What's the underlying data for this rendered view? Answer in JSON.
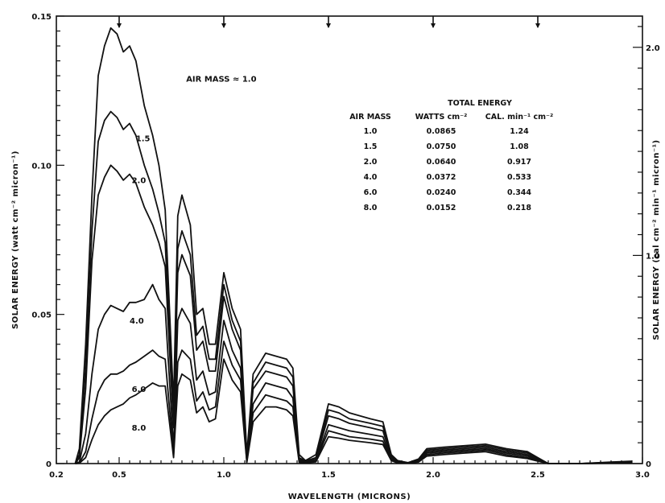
{
  "chart_data": {
    "type": "line",
    "title": "",
    "xlabel": "WAVELENGTH (MICRONS)",
    "ylabel": "SOLAR ENERGY (watt cm⁻² micron⁻¹)",
    "ylabel_right": "SOLAR ENERGY (cal cm⁻² min⁻¹ micron⁻¹)",
    "xlim": [
      0.2,
      3.0
    ],
    "ylim": [
      0,
      0.15
    ],
    "ylim_right": [
      0,
      2.15
    ],
    "x_ticks": [
      "0.2",
      "0.5",
      "1.0",
      "1.5",
      "2.0",
      "2.5",
      "3.0"
    ],
    "y_ticks": [
      "0",
      "0.05",
      "0.10",
      "0.15"
    ],
    "y_ticks_right": [
      "0",
      "1.0",
      "2.0"
    ],
    "grid": false,
    "series_labels": [
      "AIR MASS ≈ 1.0",
      "1.5",
      "2.0",
      "4.0",
      "6.0",
      "8.0"
    ],
    "x": [
      0.29,
      0.31,
      0.34,
      0.37,
      0.4,
      0.43,
      0.46,
      0.49,
      0.52,
      0.55,
      0.58,
      0.62,
      0.66,
      0.69,
      0.72,
      0.76,
      0.78,
      0.8,
      0.84,
      0.87,
      0.9,
      0.93,
      0.96,
      1.0,
      1.04,
      1.08,
      1.11,
      1.14,
      1.2,
      1.25,
      1.3,
      1.33,
      1.36,
      1.39,
      1.44,
      1.5,
      1.55,
      1.6,
      1.7,
      1.76,
      1.8,
      1.83,
      1.88,
      1.93,
      1.97,
      2.05,
      2.15,
      2.25,
      2.35,
      2.45,
      2.5,
      2.55,
      2.7,
      2.85,
      2.95
    ],
    "series": [
      {
        "name": "AIR MASS ≈ 1.0",
        "values": [
          0.0,
          0.005,
          0.04,
          0.09,
          0.13,
          0.14,
          0.146,
          0.144,
          0.138,
          0.14,
          0.135,
          0.12,
          0.11,
          0.1,
          0.085,
          0.02,
          0.083,
          0.09,
          0.08,
          0.05,
          0.052,
          0.04,
          0.04,
          0.064,
          0.052,
          0.045,
          0.003,
          0.03,
          0.037,
          0.036,
          0.035,
          0.032,
          0.003,
          0.001,
          0.003,
          0.02,
          0.019,
          0.017,
          0.015,
          0.014,
          0.003,
          0.001,
          0.0003,
          0.0015,
          0.005,
          0.0055,
          0.006,
          0.0065,
          0.005,
          0.004,
          0.002,
          0.0,
          0.0,
          0.0005,
          0.0008
        ]
      },
      {
        "name": "1.5",
        "values": [
          0.0,
          0.003,
          0.032,
          0.078,
          0.108,
          0.115,
          0.118,
          0.116,
          0.112,
          0.114,
          0.11,
          0.1,
          0.092,
          0.084,
          0.074,
          0.015,
          0.072,
          0.078,
          0.07,
          0.043,
          0.046,
          0.035,
          0.035,
          0.06,
          0.048,
          0.041,
          0.002,
          0.027,
          0.034,
          0.033,
          0.032,
          0.029,
          0.002,
          0.0008,
          0.002,
          0.018,
          0.017,
          0.015,
          0.0135,
          0.0125,
          0.0025,
          0.0008,
          0.0002,
          0.0012,
          0.0045,
          0.005,
          0.0055,
          0.006,
          0.0045,
          0.0035,
          0.0018,
          0.0,
          0.0,
          0.0004,
          0.0007
        ]
      },
      {
        "name": "2.0",
        "values": [
          0.0,
          0.002,
          0.025,
          0.068,
          0.09,
          0.096,
          0.1,
          0.098,
          0.095,
          0.097,
          0.094,
          0.086,
          0.08,
          0.074,
          0.066,
          0.012,
          0.064,
          0.07,
          0.063,
          0.038,
          0.041,
          0.031,
          0.031,
          0.056,
          0.045,
          0.038,
          0.0015,
          0.025,
          0.031,
          0.03,
          0.029,
          0.026,
          0.0015,
          0.0006,
          0.0015,
          0.016,
          0.015,
          0.0135,
          0.012,
          0.011,
          0.002,
          0.0006,
          0.0002,
          0.001,
          0.004,
          0.0045,
          0.005,
          0.0055,
          0.004,
          0.003,
          0.0015,
          0.0,
          0.0,
          0.0003,
          0.0006
        ]
      },
      {
        "name": "4.0",
        "values": [
          0.0,
          0.0005,
          0.01,
          0.03,
          0.045,
          0.05,
          0.053,
          0.052,
          0.051,
          0.054,
          0.054,
          0.055,
          0.06,
          0.055,
          0.052,
          0.005,
          0.048,
          0.052,
          0.047,
          0.028,
          0.031,
          0.023,
          0.024,
          0.048,
          0.038,
          0.032,
          0.001,
          0.02,
          0.027,
          0.026,
          0.025,
          0.022,
          0.001,
          0.0004,
          0.001,
          0.013,
          0.012,
          0.011,
          0.0098,
          0.009,
          0.0015,
          0.0004,
          0.0001,
          0.0008,
          0.0035,
          0.004,
          0.0045,
          0.005,
          0.0035,
          0.0025,
          0.0012,
          0.0,
          0.0,
          0.0002,
          0.0005
        ]
      },
      {
        "name": "6.0",
        "values": [
          0.0,
          0.0002,
          0.004,
          0.015,
          0.024,
          0.028,
          0.03,
          0.03,
          0.031,
          0.033,
          0.034,
          0.036,
          0.038,
          0.036,
          0.035,
          0.003,
          0.034,
          0.038,
          0.035,
          0.021,
          0.024,
          0.018,
          0.019,
          0.041,
          0.033,
          0.028,
          0.0006,
          0.017,
          0.023,
          0.022,
          0.021,
          0.019,
          0.0006,
          0.0003,
          0.0008,
          0.011,
          0.01,
          0.009,
          0.0082,
          0.0075,
          0.0012,
          0.0003,
          0.0001,
          0.0006,
          0.003,
          0.0035,
          0.004,
          0.0045,
          0.003,
          0.002,
          0.001,
          0.0,
          0.0,
          0.0002,
          0.0004
        ]
      },
      {
        "name": "8.0",
        "values": [
          0.0,
          0.0001,
          0.002,
          0.008,
          0.013,
          0.016,
          0.018,
          0.019,
          0.02,
          0.022,
          0.023,
          0.025,
          0.027,
          0.026,
          0.026,
          0.002,
          0.026,
          0.03,
          0.028,
          0.017,
          0.019,
          0.014,
          0.015,
          0.035,
          0.028,
          0.024,
          0.0004,
          0.014,
          0.019,
          0.019,
          0.018,
          0.016,
          0.0004,
          0.0002,
          0.0006,
          0.009,
          0.0085,
          0.0078,
          0.007,
          0.0064,
          0.001,
          0.0002,
          0.0001,
          0.0005,
          0.0025,
          0.003,
          0.0035,
          0.004,
          0.0025,
          0.0017,
          0.0008,
          0.0,
          0.0,
          0.0001,
          0.0003
        ]
      }
    ],
    "table": {
      "header_group": "TOTAL   ENERGY",
      "columns": [
        "AIR MASS",
        "WATTS cm⁻²",
        "CAL. min⁻¹ cm⁻²"
      ],
      "rows": [
        [
          "1.0",
          "0.0865",
          "1.24"
        ],
        [
          "1.5",
          "0.0750",
          "1.08"
        ],
        [
          "2.0",
          "0.0640",
          "0.917"
        ],
        [
          "4.0",
          "0.0372",
          "0.533"
        ],
        [
          "6.0",
          "0.0240",
          "0.344"
        ],
        [
          "8.0",
          "0.0152",
          "0.218"
        ]
      ]
    }
  }
}
